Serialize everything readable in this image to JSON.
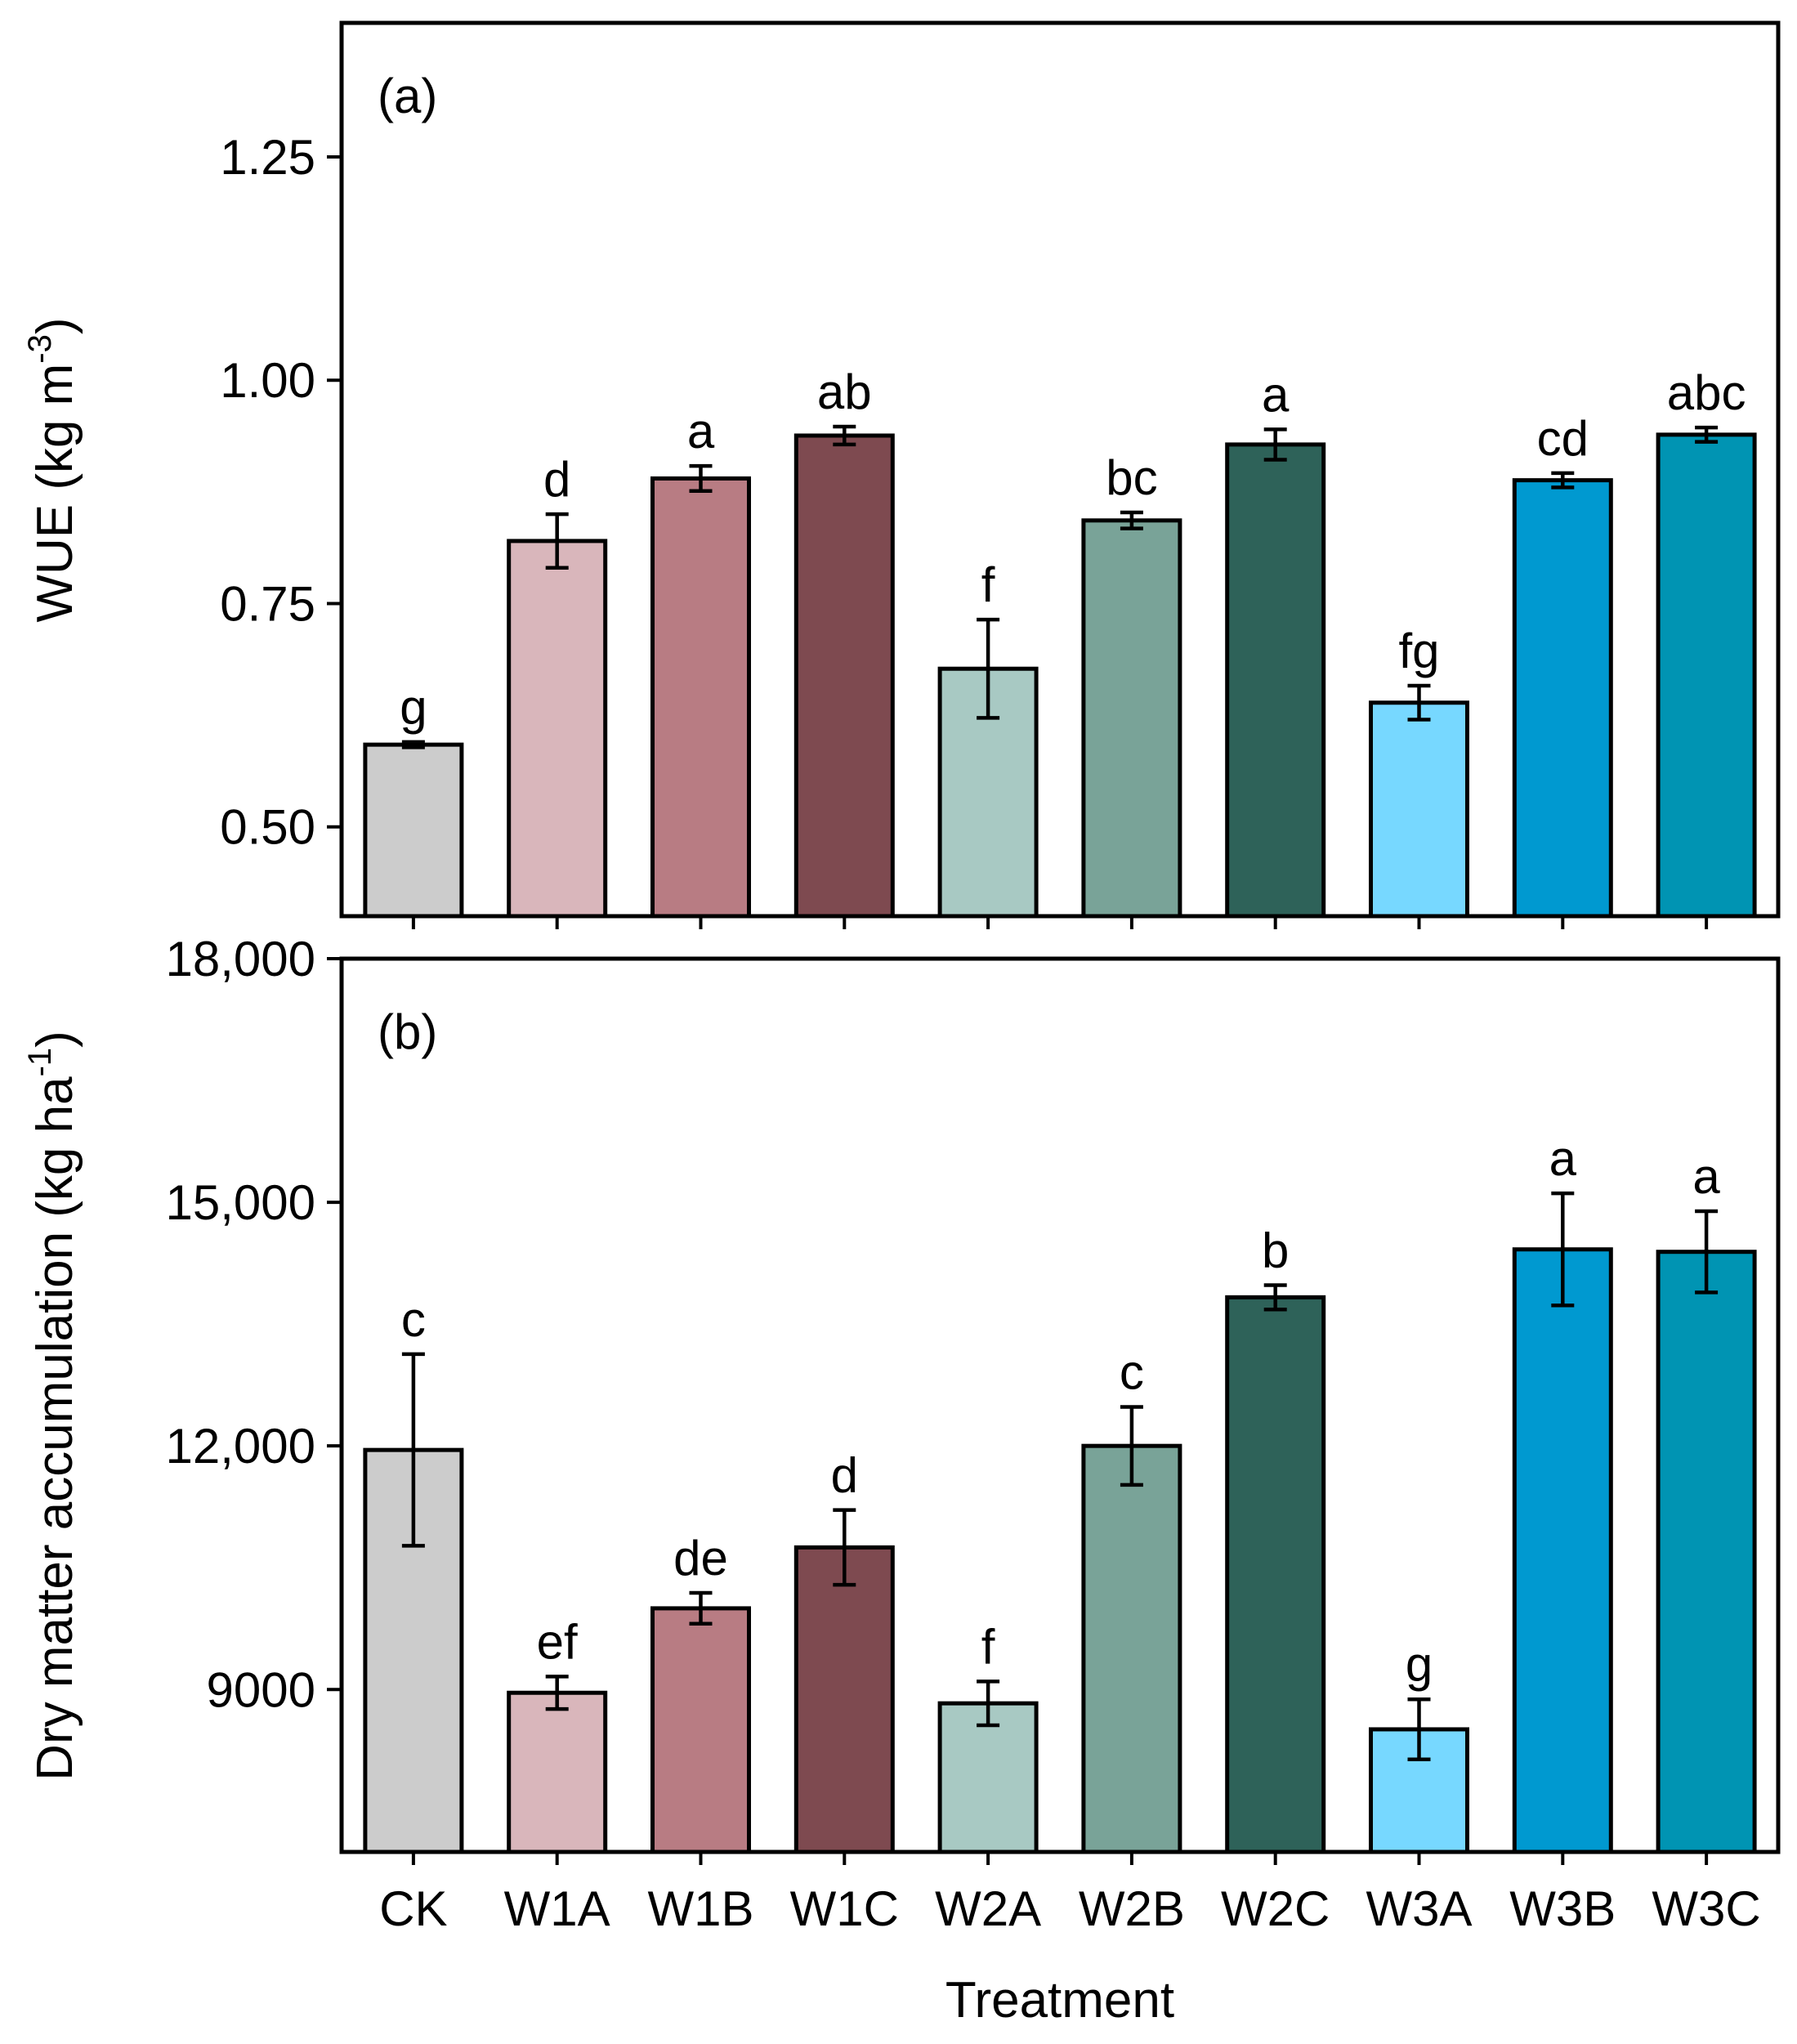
{
  "chart_data": [
    {
      "type": "bar",
      "panel_label": "(a)",
      "ylabel": "WUE (kg m",
      "ylabel_sup": "-3",
      "ylabel_close": ")",
      "xlabel": "",
      "ylim": [
        0.4,
        1.4
      ],
      "yticks": [
        0.5,
        0.75,
        1.0,
        1.25
      ],
      "ytick_labels": [
        "0.50",
        "0.75",
        "1.00",
        "1.25"
      ],
      "categories": [
        "CK",
        "W1A",
        "W1B",
        "W1C",
        "W2A",
        "W2B",
        "W2C",
        "W3A",
        "W3B",
        "W3C"
      ],
      "values": [
        0.592,
        0.82,
        0.89,
        0.938,
        0.677,
        0.843,
        0.928,
        0.639,
        0.888,
        0.939
      ],
      "errors": [
        0.003,
        0.03,
        0.014,
        0.01,
        0.055,
        0.009,
        0.017,
        0.019,
        0.008,
        0.008
      ],
      "letters": [
        "g",
        "d",
        "a",
        "ab",
        "f",
        "bc",
        "a",
        "fg",
        "cd",
        "abc"
      ],
      "colors": [
        "#cccccc",
        "#d9b6bb",
        "#b87c83",
        "#7e4a50",
        "#a8c9c3",
        "#79a398",
        "#2e6259",
        "#77d8ff",
        "#0099d0",
        "#0094b3"
      ]
    },
    {
      "type": "bar",
      "panel_label": "(b)",
      "ylabel": "Dry matter accumulation (kg ha",
      "ylabel_sup": "-1",
      "ylabel_close": ")",
      "xlabel": "Treatment",
      "ylim": [
        7000,
        18000
      ],
      "yticks": [
        9000,
        12000,
        15000,
        18000
      ],
      "ytick_labels": [
        "9000",
        "12,000",
        "15,000",
        "18,000"
      ],
      "categories": [
        "CK",
        "W1A",
        "W1B",
        "W1C",
        "W2A",
        "W2B",
        "W2C",
        "W3A",
        "W3B",
        "W3C"
      ],
      "values": [
        11950,
        8960,
        10000,
        10750,
        8830,
        12000,
        13830,
        8510,
        14420,
        14390
      ],
      "errors": [
        1180,
        200,
        190,
        460,
        270,
        480,
        150,
        370,
        690,
        500
      ],
      "letters": [
        "c",
        "ef",
        "de",
        "d",
        "f",
        "c",
        "b",
        "g",
        "a",
        "a"
      ],
      "colors": [
        "#cccccc",
        "#d9b6bb",
        "#b87c83",
        "#7e4a50",
        "#a8c9c3",
        "#79a398",
        "#2e6259",
        "#77d8ff",
        "#0099d0",
        "#0094b3"
      ]
    }
  ]
}
